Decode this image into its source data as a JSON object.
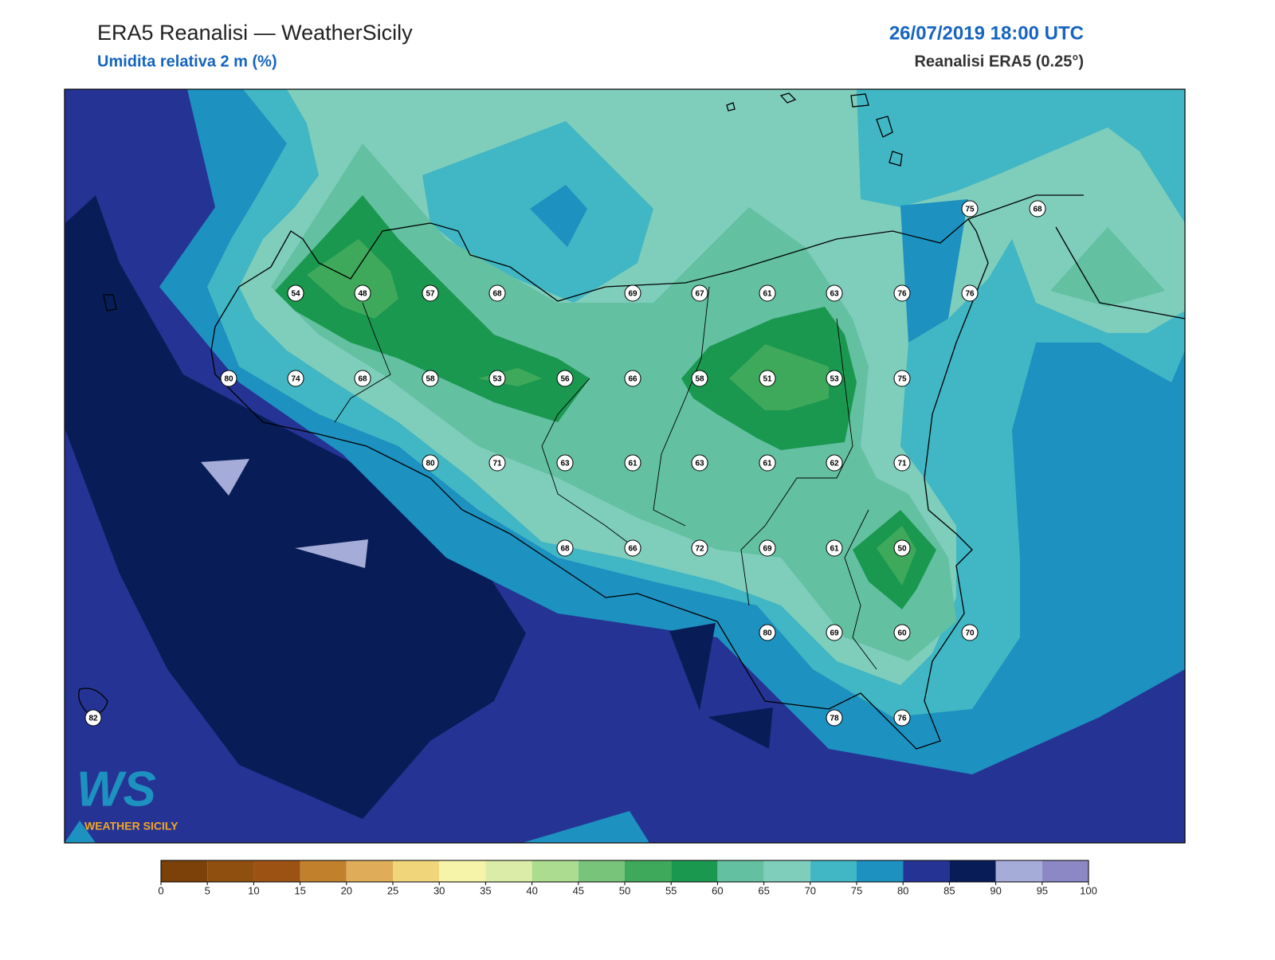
{
  "header": {
    "title": "ERA5 Reanalisi — WeatherSicily",
    "subtitle": "Umidita relativa 2 m (%)",
    "datetime": "26/07/2019 18:00 UTC",
    "source": "Reanalisi ERA5 (0.25°)"
  },
  "logo": {
    "mark": "WS",
    "text": "WEATHER SICILY"
  },
  "stations": {
    "values": [
      75,
      68,
      54,
      48,
      57,
      68,
      69,
      67,
      61,
      63,
      76,
      76,
      80,
      74,
      68,
      58,
      53,
      56,
      66,
      58,
      51,
      53,
      75,
      80,
      71,
      63,
      61,
      63,
      61,
      62,
      71,
      68,
      66,
      72,
      69,
      61,
      50,
      80,
      69,
      60,
      70,
      82,
      78,
      76
    ]
  },
  "colorbar": {
    "ticks": [
      0,
      5,
      10,
      15,
      20,
      25,
      30,
      35,
      40,
      45,
      50,
      55,
      60,
      65,
      70,
      75,
      80,
      85,
      90,
      95,
      100
    ],
    "colors": [
      "#7b4109",
      "#8f4f0f",
      "#9b5212",
      "#c0802c",
      "#dfad5a",
      "#f0d57b",
      "#f6f4a8",
      "#dbeba8",
      "#acdc8f",
      "#78c47a",
      "#3fa95b",
      "#1a9850",
      "#63c0a1",
      "#7fcdbb",
      "#41b6c4",
      "#1d91c0",
      "#253494",
      "#081d58",
      "#a6acd8",
      "#8c88c6"
    ]
  }
}
